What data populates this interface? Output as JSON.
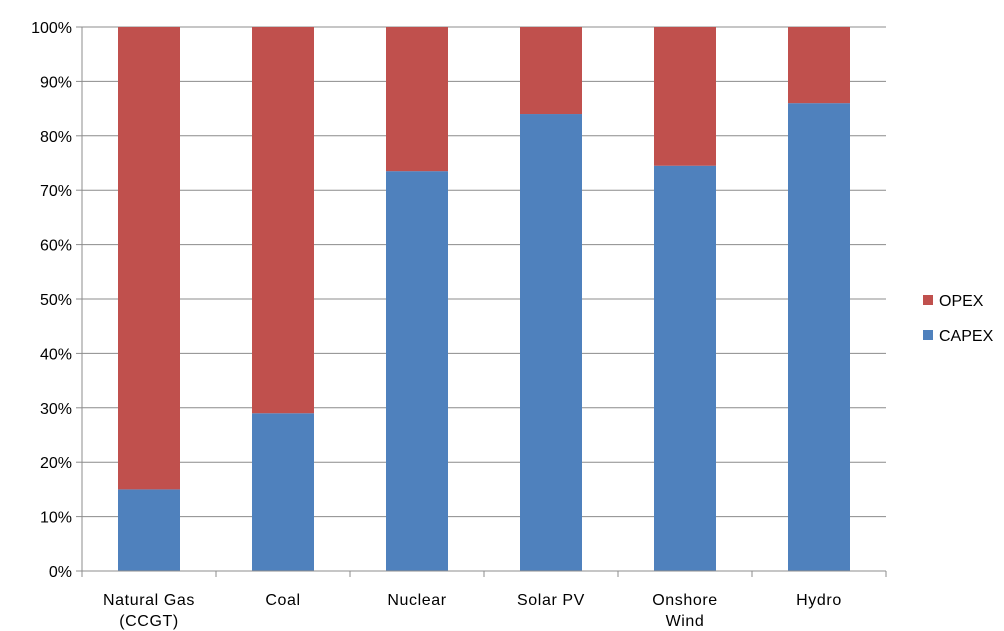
{
  "chart_data": {
    "type": "bar",
    "stacked": true,
    "percent_stacked": true,
    "categories": [
      "Natural Gas (CCGT)",
      "Coal",
      "Nuclear",
      "Solar PV",
      "Onshore Wind",
      "Hydro"
    ],
    "category_label_lines": [
      [
        "Natural Gas",
        "(CCGT)"
      ],
      [
        "Coal"
      ],
      [
        "Nuclear"
      ],
      [
        "Solar PV"
      ],
      [
        "Onshore",
        "Wind"
      ],
      [
        "Hydro"
      ]
    ],
    "series": [
      {
        "name": "CAPEX",
        "color": "#4f81bd",
        "values": [
          15,
          29,
          73.5,
          84,
          74.5,
          86
        ]
      },
      {
        "name": "OPEX",
        "color": "#c0504d",
        "values": [
          85,
          71,
          26.5,
          16,
          25.5,
          14
        ]
      }
    ],
    "ylim": [
      0,
      100
    ],
    "yticks": [
      "0%",
      "10%",
      "20%",
      "30%",
      "40%",
      "50%",
      "60%",
      "70%",
      "80%",
      "90%",
      "100%"
    ],
    "grid": true,
    "legend_position": "right",
    "legend_order": [
      "OPEX",
      "CAPEX"
    ],
    "title": "",
    "xlabel": "",
    "ylabel": ""
  }
}
